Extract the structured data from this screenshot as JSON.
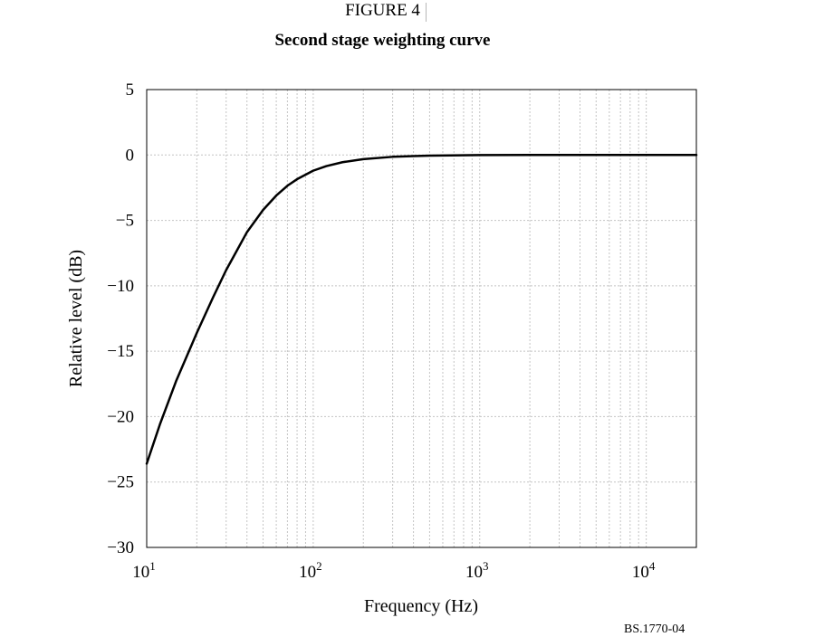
{
  "figure": {
    "label": "FIGURE 4",
    "title": "Second stage weighting curve",
    "reference": "BS.1770-04"
  },
  "chart_data": {
    "type": "line",
    "title": "Second stage weighting curve",
    "xlabel": "Frequency (Hz)",
    "ylabel": "Relative level (dB)",
    "x_scale": "log",
    "xlim": [
      10,
      20000
    ],
    "ylim": [
      -30,
      5
    ],
    "x_ticks": [
      {
        "value": 10,
        "base": "10",
        "exp": "1"
      },
      {
        "value": 100,
        "base": "10",
        "exp": "2"
      },
      {
        "value": 1000,
        "base": "10",
        "exp": "3"
      },
      {
        "value": 10000,
        "base": "10",
        "exp": "4"
      }
    ],
    "y_ticks": [
      {
        "value": 5,
        "label": "5"
      },
      {
        "value": 0,
        "label": "0"
      },
      {
        "value": -5,
        "label": "−5"
      },
      {
        "value": -10,
        "label": "−10"
      },
      {
        "value": -15,
        "label": "−15"
      },
      {
        "value": -20,
        "label": "−20"
      },
      {
        "value": -25,
        "label": "−25"
      },
      {
        "value": -30,
        "label": "−30"
      }
    ],
    "grid": true,
    "legend": "none",
    "series": [
      {
        "color": "#000000",
        "x": [
          10,
          12,
          15,
          20,
          25,
          30,
          40,
          50,
          60,
          70,
          80,
          100,
          120,
          150,
          200,
          300,
          400,
          500,
          1000,
          2000,
          5000,
          10000,
          20000
        ],
        "y": [
          -23.6,
          -20.6,
          -17.3,
          -13.6,
          -10.9,
          -8.8,
          -5.9,
          -4.2,
          -3.1,
          -2.35,
          -1.85,
          -1.2,
          -0.85,
          -0.55,
          -0.32,
          -0.14,
          -0.08,
          -0.05,
          -0.01,
          0,
          0,
          0,
          0
        ]
      }
    ]
  }
}
